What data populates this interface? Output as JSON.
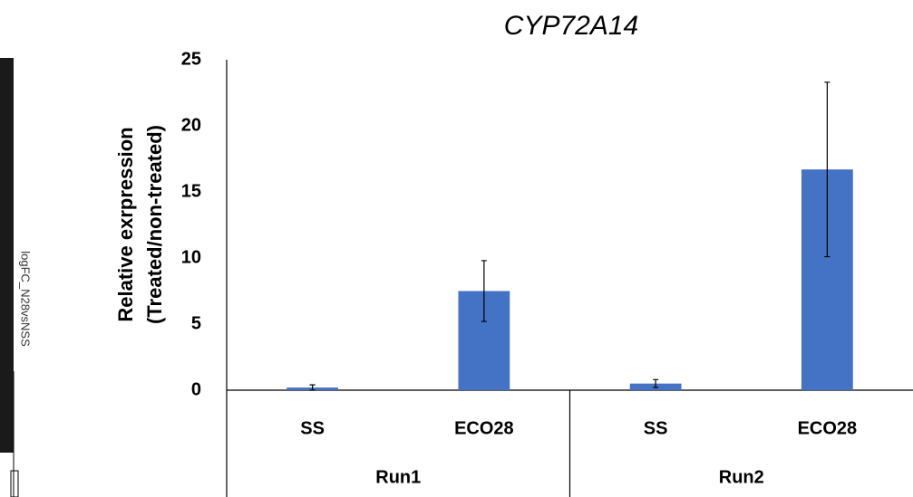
{
  "side_label": "logFC_N28vsNSS",
  "chart_data": {
    "type": "bar",
    "title": "CYP72A14",
    "y_label": [
      "Relative exrpression",
      "(Treated/non-treated)"
    ],
    "categories": [
      "SS",
      "ECO28",
      "SS",
      "ECO28"
    ],
    "groups": [
      "Run1",
      "Run2"
    ],
    "values": [
      0.2,
      7.5,
      0.5,
      16.7
    ],
    "errors": [
      0.2,
      2.3,
      0.3,
      6.6
    ],
    "color": "#4472c4",
    "ylim": [
      0,
      25
    ],
    "yticks": [
      0,
      5,
      10,
      15,
      20,
      25
    ],
    "grid": false
  }
}
